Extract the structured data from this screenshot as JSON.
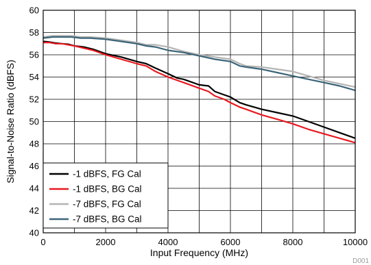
{
  "chart_data": {
    "type": "line",
    "title": "",
    "xlabel": "Input Frequency (MHz)",
    "ylabel": "Signal-to-Noise Ratio (dBFS)",
    "xlim": [
      0,
      10000
    ],
    "ylim": [
      40,
      60
    ],
    "xticks": [
      0,
      2000,
      4000,
      6000,
      8000,
      10000
    ],
    "yticks": [
      40,
      42,
      44,
      46,
      48,
      50,
      52,
      54,
      56,
      58,
      60
    ],
    "grid": true,
    "legend_position": "bottom-left",
    "figure_code": "D001",
    "series": [
      {
        "name": "-1 dBFS, FG Cal",
        "color": "#000000",
        "x": [
          0,
          200,
          400,
          600,
          800,
          1000,
          1300,
          1600,
          2000,
          2500,
          3000,
          3300,
          3600,
          4000,
          4300,
          4500,
          5000,
          5300,
          5500,
          5800,
          6000,
          6300,
          6500,
          7000,
          7500,
          8000,
          8500,
          9000,
          9500,
          10000
        ],
        "values": [
          57.2,
          57.15,
          57.05,
          57.0,
          56.95,
          56.8,
          56.7,
          56.5,
          56.1,
          55.8,
          55.4,
          55.2,
          54.8,
          54.3,
          53.9,
          53.8,
          53.3,
          53.2,
          52.7,
          52.4,
          52.2,
          51.7,
          51.5,
          51.1,
          50.8,
          50.5,
          50.0,
          49.5,
          49.0,
          48.5
        ]
      },
      {
        "name": "-1 dBFS, BG Cal",
        "color": "#e8191f",
        "x": [
          0,
          200,
          400,
          600,
          800,
          1000,
          1300,
          1600,
          2000,
          2500,
          3000,
          3300,
          3600,
          4000,
          4300,
          4500,
          5000,
          5300,
          5500,
          5800,
          6000,
          6300,
          6500,
          7000,
          7500,
          8000,
          8500,
          9000,
          9500,
          10000
        ],
        "values": [
          57.1,
          57.1,
          57.0,
          57.0,
          56.9,
          56.8,
          56.6,
          56.4,
          56.0,
          55.6,
          55.2,
          55.0,
          54.5,
          54.0,
          53.7,
          53.5,
          53.0,
          52.7,
          52.3,
          52.0,
          51.7,
          51.3,
          51.1,
          50.6,
          50.2,
          49.8,
          49.3,
          48.9,
          48.5,
          48.1
        ]
      },
      {
        "name": "-7 dBFS, FG Cal",
        "color": "#b4b4b4",
        "x": [
          0,
          300,
          600,
          900,
          1200,
          1500,
          2000,
          2500,
          3000,
          3300,
          3600,
          4000,
          4500,
          5000,
          5500,
          6000,
          6300,
          6500,
          7000,
          7500,
          8000,
          8500,
          9000,
          9500,
          10000
        ],
        "values": [
          57.6,
          57.7,
          57.7,
          57.7,
          57.6,
          57.6,
          57.5,
          57.3,
          57.1,
          56.9,
          56.9,
          56.7,
          56.3,
          56.0,
          55.8,
          55.6,
          55.2,
          55.0,
          54.9,
          54.7,
          54.5,
          54.1,
          53.7,
          53.4,
          53.1
        ]
      },
      {
        "name": "-7 dBFS, BG Cal",
        "color": "#3a6478",
        "x": [
          0,
          300,
          600,
          900,
          1200,
          1500,
          2000,
          2500,
          3000,
          3300,
          3600,
          4000,
          4500,
          5000,
          5500,
          6000,
          6300,
          6500,
          7000,
          7500,
          8000,
          8500,
          9000,
          9500,
          10000
        ],
        "values": [
          57.5,
          57.6,
          57.6,
          57.6,
          57.5,
          57.5,
          57.4,
          57.2,
          57.0,
          56.8,
          56.7,
          56.4,
          56.2,
          55.9,
          55.6,
          55.4,
          55.0,
          54.9,
          54.7,
          54.4,
          54.1,
          53.8,
          53.5,
          53.2,
          52.8
        ]
      }
    ]
  }
}
